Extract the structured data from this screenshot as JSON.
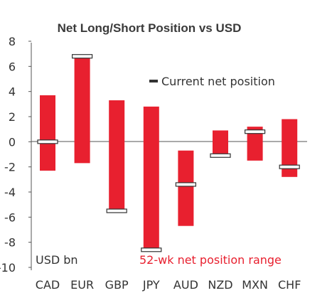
{
  "chart_data": {
    "type": "bar",
    "title": "Net Long/Short Position vs USD",
    "ylim": [
      -10,
      8
    ],
    "yticks": [
      8,
      6,
      4,
      2,
      0,
      -2,
      -4,
      -6,
      -8,
      -10
    ],
    "categories": [
      "CAD",
      "EUR",
      "GBP",
      "JPY",
      "AUD",
      "NZD",
      "MXN",
      "CHF"
    ],
    "series": [
      {
        "name": "52-wk net position range",
        "low": [
          -2.3,
          -1.7,
          -5.6,
          -8.6,
          -6.7,
          -1.1,
          -1.5,
          -2.8
        ],
        "high": [
          3.7,
          6.8,
          3.3,
          2.8,
          -0.7,
          0.9,
          1.2,
          1.8
        ]
      },
      {
        "name": "Current net position",
        "values": [
          0.0,
          6.8,
          -5.5,
          -8.6,
          -3.4,
          -1.1,
          0.8,
          -2.0
        ]
      }
    ],
    "unit_label": "USD bn",
    "legend_current": "Current net position",
    "legend_range": "52-wk net position range",
    "colors": {
      "bar": "#e8202f",
      "marker_fill": "#ffffff",
      "marker_stroke": "#333333",
      "axis": "#555555",
      "range_text": "#e8202f"
    }
  }
}
